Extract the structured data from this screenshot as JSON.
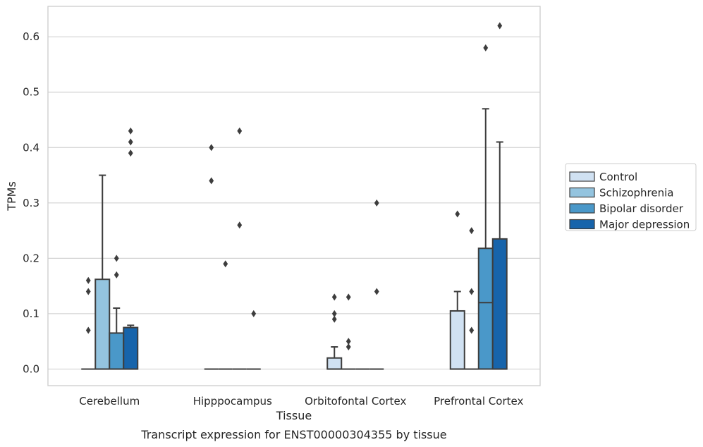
{
  "chart_data": {
    "type": "box",
    "title": "",
    "caption": "Transcript expression for ENST00000304355 by tissue",
    "xlabel": "Tissue",
    "ylabel": "TPMs",
    "ylim": [
      -0.03,
      0.655
    ],
    "yticks": [
      "0.0",
      "0.1",
      "0.2",
      "0.3",
      "0.4",
      "0.5",
      "0.6"
    ],
    "grid": true,
    "legend_position": "right",
    "categories": [
      "Cerebellum",
      "Hipppocampus",
      "Orbitofontal Cortex",
      "Prefrontal Cortex"
    ],
    "series": [
      {
        "name": "Control",
        "color": "#d0e1f2",
        "boxes": [
          {
            "q1": 0,
            "median": 0,
            "q3": 0,
            "whisker_low": 0,
            "whisker_high": 0,
            "outliers": [
              0.07,
              0.14,
              0.16
            ]
          },
          {
            "q1": 0,
            "median": 0,
            "q3": 0,
            "whisker_low": 0,
            "whisker_high": 0,
            "outliers": [
              0.34,
              0.4
            ]
          },
          {
            "q1": 0,
            "median": 0,
            "q3": 0.02,
            "whisker_low": 0,
            "whisker_high": 0.04,
            "outliers": [
              0.09,
              0.1,
              0.13
            ]
          },
          {
            "q1": 0,
            "median": 0,
            "q3": 0.105,
            "whisker_low": 0,
            "whisker_high": 0.14,
            "outliers": [
              0.28
            ]
          }
        ]
      },
      {
        "name": "Schizophrenia",
        "color": "#94c4df",
        "boxes": [
          {
            "q1": 0,
            "median": 0,
            "q3": 0.162,
            "whisker_low": 0,
            "whisker_high": 0.35,
            "outliers": []
          },
          {
            "q1": 0,
            "median": 0,
            "q3": 0,
            "whisker_low": 0,
            "whisker_high": 0,
            "outliers": [
              0.19
            ]
          },
          {
            "q1": 0,
            "median": 0,
            "q3": 0,
            "whisker_low": 0,
            "whisker_high": 0,
            "outliers": [
              0.04,
              0.05,
              0.13
            ]
          },
          {
            "q1": 0,
            "median": 0,
            "q3": 0,
            "whisker_low": 0,
            "whisker_high": 0,
            "outliers": [
              0.07,
              0.14,
              0.25
            ]
          }
        ]
      },
      {
        "name": "Bipolar disorder",
        "color": "#4a98c9",
        "boxes": [
          {
            "q1": 0,
            "median": 0,
            "q3": 0.065,
            "whisker_low": 0,
            "whisker_high": 0.11,
            "outliers": [
              0.17,
              0.2
            ]
          },
          {
            "q1": 0,
            "median": 0,
            "q3": 0,
            "whisker_low": 0,
            "whisker_high": 0,
            "outliers": [
              0.26,
              0.43
            ]
          },
          {
            "q1": 0,
            "median": 0,
            "q3": 0,
            "whisker_low": 0,
            "whisker_high": 0,
            "outliers": []
          },
          {
            "q1": 0,
            "median": 0.12,
            "q3": 0.218,
            "whisker_low": 0,
            "whisker_high": 0.47,
            "outliers": [
              0.58
            ]
          }
        ]
      },
      {
        "name": "Major depression",
        "color": "#1764ab",
        "boxes": [
          {
            "q1": 0,
            "median": 0,
            "q3": 0.075,
            "whisker_low": 0,
            "whisker_high": 0.079,
            "outliers": [
              0.39,
              0.41,
              0.43
            ]
          },
          {
            "q1": 0,
            "median": 0,
            "q3": 0,
            "whisker_low": 0,
            "whisker_high": 0,
            "outliers": [
              0.1
            ]
          },
          {
            "q1": 0,
            "median": 0,
            "q3": 0,
            "whisker_low": 0,
            "whisker_high": 0,
            "outliers": [
              0.14,
              0.3
            ]
          },
          {
            "q1": 0,
            "median": 0,
            "q3": 0.235,
            "whisker_low": 0,
            "whisker_high": 0.41,
            "outliers": [
              0.62
            ]
          }
        ]
      }
    ]
  }
}
